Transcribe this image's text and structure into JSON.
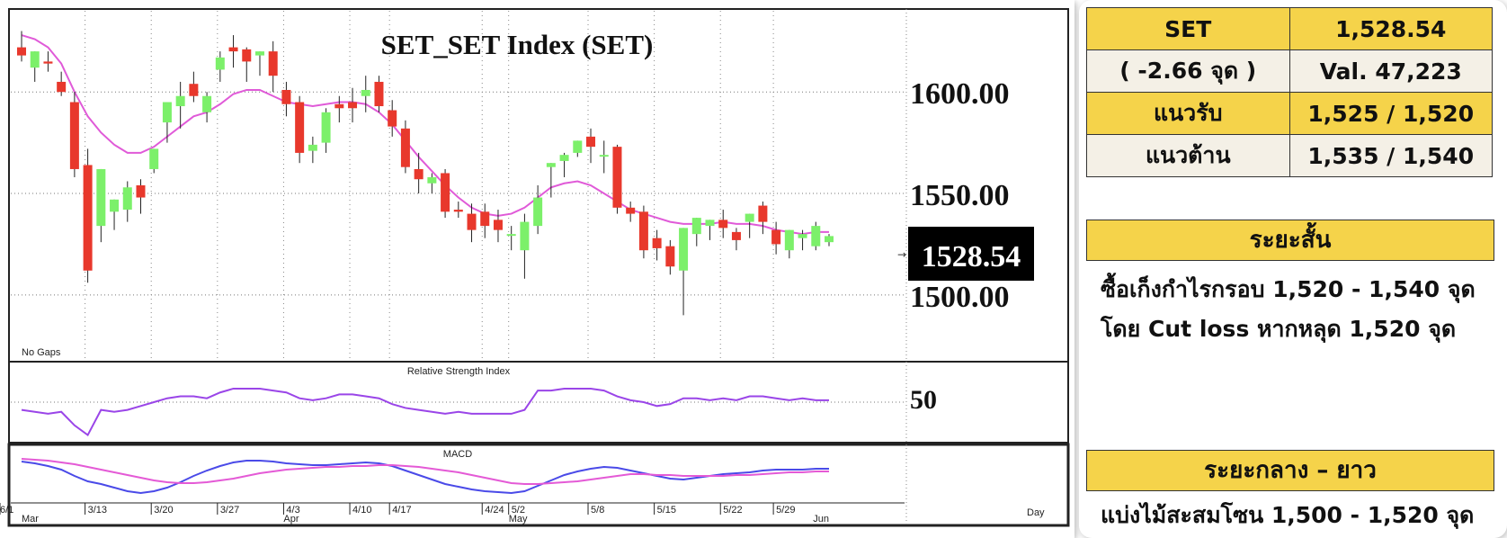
{
  "chart_data": {
    "type": "candlestick",
    "title": "SET_SET  Index  (SET)",
    "price_labels": [
      "1600.00",
      "1550.00",
      "1500.00"
    ],
    "last_price": "1528.54",
    "ylim": [
      1468,
      1640
    ],
    "note": "No Gaps",
    "x_tick_labels": [
      "3/13",
      "3/20",
      "3/27",
      "4/3",
      "4/10",
      "4/17",
      "4/24",
      "5/2",
      "5/8",
      "5/15",
      "5/22",
      "5/29",
      "6/1"
    ],
    "month_labels": [
      "Mar",
      "Apr",
      "May",
      "Jun"
    ],
    "x_axis_unit": "Day",
    "candles": [
      [
        1622,
        1630,
        1618,
        1615
      ],
      [
        1612,
        1618,
        1620,
        1605
      ],
      [
        1615,
        1620,
        1614,
        1610
      ],
      [
        1605,
        1610,
        1600,
        1598
      ],
      [
        1595,
        1600,
        1562,
        1558
      ],
      [
        1564,
        1572,
        1512,
        1506
      ],
      [
        1534,
        1560,
        1562,
        1526
      ],
      [
        1541,
        1545,
        1547,
        1532
      ],
      [
        1542,
        1556,
        1553,
        1536
      ],
      [
        1554,
        1557,
        1548,
        1540
      ],
      [
        1562,
        1568,
        1572,
        1560
      ],
      [
        1585,
        1595,
        1595,
        1575
      ],
      [
        1593,
        1605,
        1598,
        1582
      ],
      [
        1604,
        1610,
        1598,
        1595
      ],
      [
        1590,
        1600,
        1598,
        1585
      ],
      [
        1611,
        1620,
        1617,
        1605
      ],
      [
        1622,
        1628,
        1620,
        1612
      ],
      [
        1621,
        1622,
        1615,
        1605
      ],
      [
        1618,
        1620,
        1620,
        1608
      ],
      [
        1620,
        1625,
        1608,
        1600
      ],
      [
        1601,
        1605,
        1594,
        1588
      ],
      [
        1595,
        1598,
        1570,
        1565
      ],
      [
        1571,
        1578,
        1574,
        1565
      ],
      [
        1575,
        1592,
        1590,
        1570
      ],
      [
        1594,
        1598,
        1592,
        1585
      ],
      [
        1595,
        1602,
        1592,
        1585
      ],
      [
        1598,
        1608,
        1601,
        1590
      ],
      [
        1605,
        1608,
        1593,
        1590
      ],
      [
        1591,
        1596,
        1583,
        1578
      ],
      [
        1582,
        1586,
        1563,
        1560
      ],
      [
        1562,
        1570,
        1557,
        1550
      ],
      [
        1555,
        1560,
        1558,
        1550
      ],
      [
        1560,
        1562,
        1541,
        1538
      ],
      [
        1542,
        1546,
        1541,
        1538
      ],
      [
        1540,
        1545,
        1532,
        1526
      ],
      [
        1541,
        1545,
        1534,
        1528
      ],
      [
        1537,
        1542,
        1532,
        1526
      ],
      [
        1530,
        1534,
        1530,
        1522
      ],
      [
        1522,
        1540,
        1536,
        1508
      ],
      [
        1534,
        1554,
        1548,
        1530
      ],
      [
        1563,
        1565,
        1565,
        1548
      ],
      [
        1566,
        1570,
        1569,
        1558
      ],
      [
        1570,
        1575,
        1576,
        1568
      ],
      [
        1578,
        1582,
        1573,
        1565
      ],
      [
        1569,
        1576,
        1569,
        1560
      ],
      [
        1573,
        1574,
        1543,
        1540
      ],
      [
        1543,
        1546,
        1540,
        1536
      ],
      [
        1541,
        1544,
        1522,
        1518
      ],
      [
        1528,
        1532,
        1523,
        1517
      ],
      [
        1524,
        1527,
        1514,
        1510
      ],
      [
        1512,
        1532,
        1533,
        1490
      ],
      [
        1530,
        1536,
        1538,
        1524
      ],
      [
        1534,
        1536,
        1537,
        1527
      ],
      [
        1537,
        1542,
        1533,
        1528
      ],
      [
        1531,
        1533,
        1527,
        1522
      ],
      [
        1536,
        1540,
        1540,
        1528
      ],
      [
        1544,
        1546,
        1536,
        1530
      ],
      [
        1532,
        1536,
        1525,
        1520
      ],
      [
        1522,
        1530,
        1532,
        1518
      ],
      [
        1528,
        1532,
        1530,
        1522
      ],
      [
        1524,
        1536,
        1534,
        1522
      ],
      [
        1526,
        1530,
        1529,
        1524
      ]
    ],
    "ma_line": [
      1628,
      1626,
      1622,
      1614,
      1600,
      1588,
      1580,
      1574,
      1570,
      1570,
      1573,
      1578,
      1583,
      1588,
      1590,
      1594,
      1599,
      1601,
      1601,
      1598,
      1595,
      1594,
      1593,
      1594,
      1595,
      1595,
      1594,
      1590,
      1584,
      1576,
      1568,
      1561,
      1554,
      1548,
      1543,
      1540,
      1539,
      1540,
      1543,
      1548,
      1553,
      1555,
      1556,
      1554,
      1550,
      1546,
      1542,
      1540,
      1538,
      1536,
      1535,
      1535,
      1535,
      1536,
      1535,
      1535,
      1534,
      1532,
      1531,
      1530,
      1531,
      1531
    ],
    "rsi": {
      "title": "Relative Strength Index",
      "level_label": "50",
      "ylim": [
        30,
        70
      ],
      "values": [
        46,
        45,
        44,
        45,
        38,
        33,
        46,
        45,
        46,
        48,
        50,
        52,
        53,
        53,
        52,
        55,
        57,
        57,
        57,
        56,
        55,
        52,
        51,
        52,
        54,
        54,
        53,
        52,
        49,
        47,
        46,
        45,
        44,
        45,
        44,
        44,
        44,
        44,
        46,
        56,
        56,
        57,
        57,
        57,
        56,
        53,
        51,
        50,
        48,
        49,
        52,
        52,
        51,
        52,
        51,
        53,
        53,
        52,
        51,
        52,
        51,
        51
      ]
    },
    "macd": {
      "title": "MACD",
      "ylim": [
        -30,
        30
      ],
      "macd_values": [
        13,
        11,
        8,
        4,
        -3,
        -9,
        -12,
        -16,
        -20,
        -22,
        -20,
        -16,
        -10,
        -3,
        3,
        8,
        12,
        14,
        14,
        13,
        11,
        10,
        9,
        9,
        10,
        11,
        12,
        11,
        8,
        3,
        -2,
        -7,
        -12,
        -15,
        -18,
        -20,
        -21,
        -22,
        -20,
        -14,
        -8,
        -2,
        2,
        5,
        7,
        6,
        3,
        0,
        -3,
        -6,
        -7,
        -5,
        -3,
        -1,
        0,
        1,
        3,
        4,
        4,
        4,
        5,
        5
      ],
      "signal_values": [
        16,
        15,
        14,
        12,
        10,
        7,
        4,
        1,
        -2,
        -5,
        -8,
        -10,
        -11,
        -11,
        -10,
        -8,
        -6,
        -3,
        0,
        2,
        4,
        5,
        6,
        7,
        7,
        8,
        8,
        9,
        9,
        8,
        7,
        5,
        3,
        1,
        -2,
        -5,
        -8,
        -11,
        -12,
        -12,
        -11,
        -10,
        -9,
        -7,
        -5,
        -3,
        -1,
        -1,
        -2,
        -2,
        -3,
        -3,
        -3,
        -3,
        -2,
        -2,
        -1,
        0,
        1,
        1,
        2,
        2
      ]
    }
  },
  "quote_table": {
    "rows": [
      {
        "label": "SET",
        "value": "1,528.54"
      },
      {
        "label": "( -2.66 จุด )",
        "value": "Val. 47,223"
      },
      {
        "label": "แนวรับ",
        "value": "1,525 / 1,520"
      },
      {
        "label": "แนวต้าน",
        "value": "1,535 / 1,540"
      }
    ]
  },
  "short_term": {
    "heading": "ระยะสั้น",
    "line1": "ซื้อเก็งกำไรกรอบ 1,520 - 1,540 จุด",
    "line2": "โดย Cut loss หากหลุด 1,520 จุด"
  },
  "long_term": {
    "heading": "ระยะกลาง – ยาว",
    "line1": "แบ่งไม้สะสมโซน 1,500 - 1,520 จุด"
  },
  "colors": {
    "up": "#7cf06a",
    "down": "#e8382c",
    "ma": "#e05ad8",
    "rsi": "#9a45e8",
    "macd": "#4a4ae8",
    "signal": "#e45ad6",
    "accent": "#f5d34a"
  }
}
